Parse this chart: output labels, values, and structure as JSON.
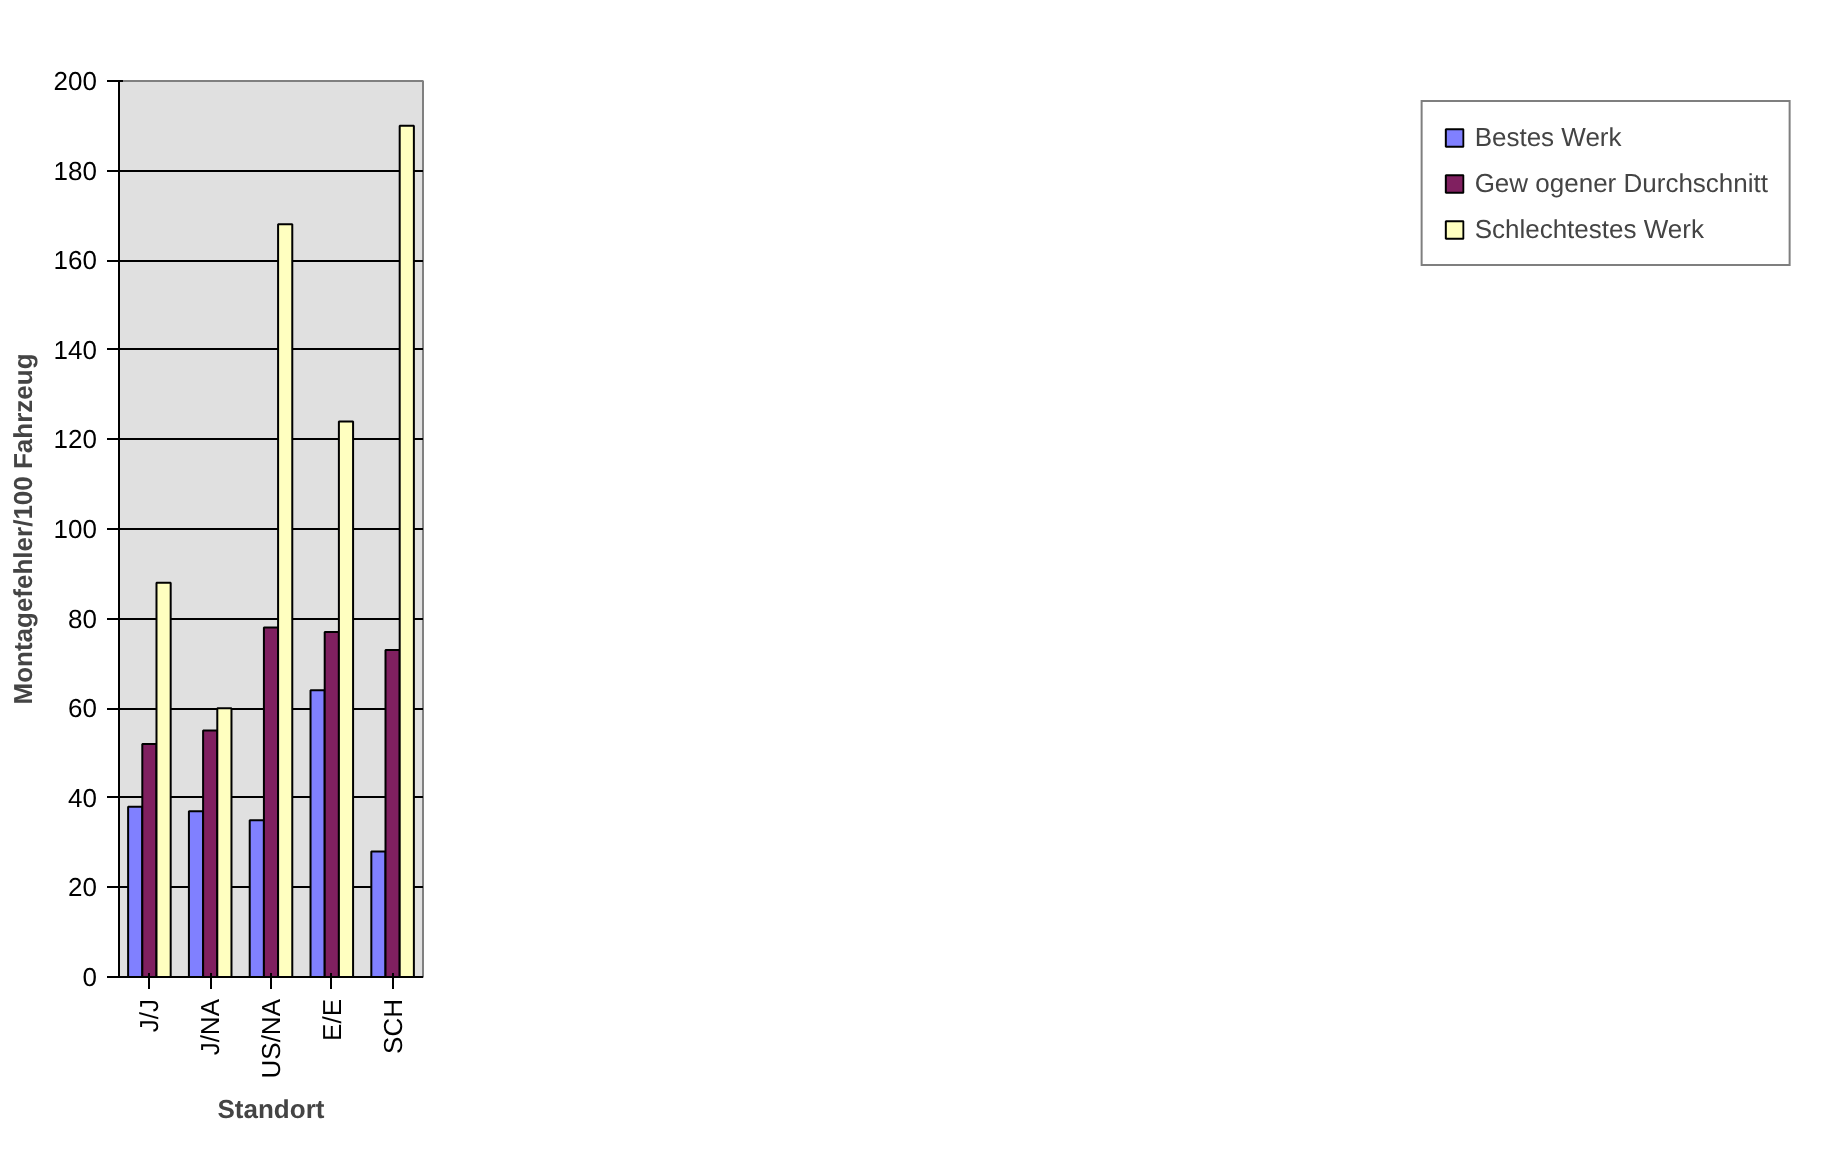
{
  "chart_data": {
    "type": "bar",
    "xlabel": "Standort",
    "ylabel": "Montagefehler/100 Fahrzeug",
    "categories": [
      "J/J",
      "J/NA",
      "US/NA",
      "E/E",
      "SCH"
    ],
    "series": [
      {
        "name": "Bestes Werk",
        "color": "#8080ff",
        "values": [
          38,
          37,
          35,
          64,
          28
        ]
      },
      {
        "name": "Gew ogener Durchschnitt",
        "color": "#802060",
        "values": [
          52,
          55,
          78,
          77,
          73
        ]
      },
      {
        "name": "Schlechtestes Werk",
        "color": "#ffffc0",
        "values": [
          88,
          60,
          168,
          124,
          190
        ]
      }
    ],
    "ylim": [
      0,
      200
    ],
    "yticks": [
      0,
      20,
      40,
      60,
      80,
      100,
      120,
      140,
      160,
      180,
      200
    ],
    "grid": "y",
    "legend": "right"
  }
}
